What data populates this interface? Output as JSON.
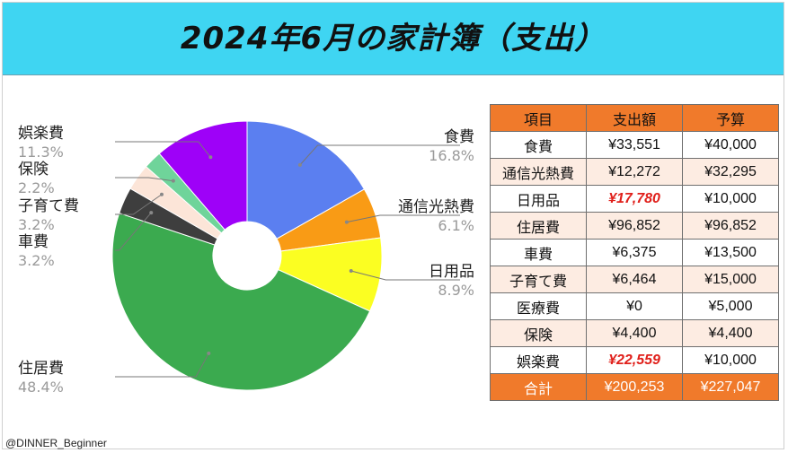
{
  "title": "2024年6月の家計簿（支出）",
  "credit": "@DINNER_Beginner",
  "chart_data": {
    "type": "pie",
    "donut": true,
    "title": "2024年6月の家計簿（支出）",
    "slices": [
      {
        "name": "食費",
        "label": "16.8%",
        "value": 16.8,
        "color": "#5b7ff0"
      },
      {
        "name": "通信光熱費",
        "label": "6.1%",
        "value": 6.1,
        "color": "#f99b15"
      },
      {
        "name": "日用品",
        "label": "8.9%",
        "value": 8.9,
        "color": "#fbfe22"
      },
      {
        "name": "住居費",
        "label": "48.4%",
        "value": 48.4,
        "color": "#3baa4f"
      },
      {
        "name": "車費",
        "label": "3.2%",
        "value": 3.2,
        "color": "#3e3e3e"
      },
      {
        "name": "子育て費",
        "label": "3.2%",
        "value": 3.2,
        "color": "#fce5d8"
      },
      {
        "name": "保険",
        "label": "2.2%",
        "value": 2.2,
        "color": "#6fd49a"
      },
      {
        "name": "娯楽費",
        "label": "11.3%",
        "value": 11.3,
        "color": "#9e01f8"
      }
    ]
  },
  "table": {
    "headers": [
      "項目",
      "支出額",
      "予算"
    ],
    "rows": [
      {
        "item": "食費",
        "spent": "¥33,551",
        "budget": "¥40,000",
        "over": false
      },
      {
        "item": "通信光熱費",
        "spent": "¥12,272",
        "budget": "¥32,295",
        "over": false
      },
      {
        "item": "日用品",
        "spent": "¥17,780",
        "budget": "¥10,000",
        "over": true
      },
      {
        "item": "住居費",
        "spent": "¥96,852",
        "budget": "¥96,852",
        "over": false
      },
      {
        "item": "車費",
        "spent": "¥6,375",
        "budget": "¥13,500",
        "over": false
      },
      {
        "item": "子育て費",
        "spent": "¥6,464",
        "budget": "¥15,000",
        "over": false
      },
      {
        "item": "医療費",
        "spent": "¥0",
        "budget": "¥5,000",
        "over": false
      },
      {
        "item": "保険",
        "spent": "¥4,400",
        "budget": "¥4,400",
        "over": false
      },
      {
        "item": "娯楽費",
        "spent": "¥22,559",
        "budget": "¥10,000",
        "over": true
      }
    ],
    "total": {
      "item": "合計",
      "spent": "¥200,253",
      "budget": "¥227,047"
    }
  }
}
